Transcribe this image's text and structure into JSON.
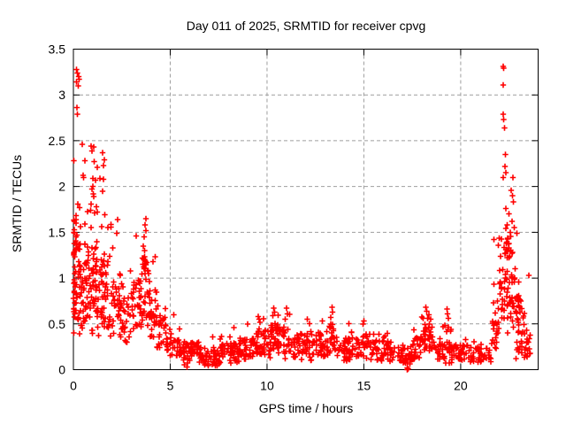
{
  "chart_data": {
    "type": "scatter",
    "title": "Day 011 of 2025, SRMTID for receiver cpvg",
    "xlabel": "GPS time / hours",
    "ylabel": "SRMTID / TECUs",
    "xlim": [
      0,
      24
    ],
    "ylim": [
      0,
      3.5
    ],
    "xticks": [
      0,
      5,
      10,
      15,
      20
    ],
    "xtick_labels": [
      "0",
      "5",
      "10",
      "15",
      "20"
    ],
    "yticks": [
      0,
      0.5,
      1,
      1.5,
      2,
      2.5,
      3,
      3.5
    ],
    "ytick_labels": [
      "0",
      "0.5",
      "1",
      "1.5",
      "2",
      "2.5",
      "3",
      "3.5"
    ],
    "grid": "dashed",
    "legend": "none",
    "series_name": "SRMTID",
    "marker": {
      "shape": "plus",
      "color": "#ff0000",
      "size": 7
    },
    "colors": {
      "grid": "#9e9e9e",
      "axis": "#000000",
      "background": "#ffffff"
    },
    "points": [
      [
        0.15,
        3.28
      ],
      [
        0.2,
        3.24
      ],
      [
        0.27,
        3.2
      ],
      [
        0.17,
        3.14
      ],
      [
        0.24,
        3.1
      ],
      [
        0.3,
        3.17
      ],
      [
        0.18,
        2.86
      ],
      [
        0.21,
        2.79
      ],
      [
        0.02,
        2.28
      ],
      [
        0.46,
        2.46
      ],
      [
        0.91,
        2.44
      ],
      [
        1.05,
        2.43
      ],
      [
        0.96,
        2.39
      ],
      [
        1.51,
        2.37
      ],
      [
        1.6,
        2.29
      ],
      [
        0.59,
        2.28
      ],
      [
        1.07,
        2.27
      ],
      [
        1.55,
        2.23
      ],
      [
        1.23,
        2.21
      ],
      [
        0.5,
        2.12
      ],
      [
        0.53,
        2.1
      ],
      [
        1.0,
        2.09
      ],
      [
        1.37,
        2.09
      ],
      [
        1.56,
        2.08
      ],
      [
        1.14,
        2.07
      ],
      [
        1.0,
        2.0
      ],
      [
        0.97,
        1.97
      ],
      [
        1.51,
        1.95
      ],
      [
        1.02,
        1.92
      ],
      [
        1.05,
        1.89
      ],
      [
        0.23,
        1.81
      ],
      [
        0.91,
        1.81
      ],
      [
        1.19,
        1.78
      ],
      [
        0.32,
        1.77
      ],
      [
        1.23,
        1.72
      ],
      [
        1.61,
        1.69
      ],
      [
        0.14,
        1.64
      ],
      [
        2.28,
        1.64
      ],
      [
        0.6,
        1.59
      ],
      [
        0.37,
        1.56
      ],
      [
        1.46,
        1.56
      ],
      [
        0.92,
        1.55
      ],
      [
        2.24,
        1.49
      ],
      [
        0.04,
        1.62
      ],
      [
        0.03,
        1.5
      ],
      [
        0.05,
        1.38
      ],
      [
        0.03,
        1.25
      ],
      [
        0.06,
        1.12
      ],
      [
        0.04,
        0.98
      ],
      [
        0.05,
        0.84
      ],
      [
        0.03,
        0.66
      ],
      [
        3.74,
        1.65
      ],
      [
        3.71,
        1.58
      ],
      [
        3.74,
        1.52
      ],
      [
        3.65,
        1.45
      ],
      [
        3.24,
        1.46
      ],
      [
        3.6,
        1.35
      ],
      [
        3.68,
        1.3
      ],
      [
        3.56,
        1.22
      ],
      [
        3.78,
        1.17
      ],
      [
        3.62,
        1.12
      ],
      [
        3.86,
        1.08
      ],
      [
        8.3,
        0.46
      ],
      [
        9.0,
        0.5
      ],
      [
        9.55,
        0.58
      ],
      [
        9.6,
        0.55
      ],
      [
        10.35,
        0.67
      ],
      [
        10.4,
        0.63
      ],
      [
        10.3,
        0.59
      ],
      [
        11.0,
        0.67
      ],
      [
        11.05,
        0.61
      ],
      [
        12.85,
        0.53
      ],
      [
        13.35,
        0.68
      ],
      [
        13.38,
        0.63
      ],
      [
        13.3,
        0.57
      ],
      [
        14.95,
        0.5
      ],
      [
        15.0,
        0.53
      ],
      [
        17.25,
        0.02
      ],
      [
        17.28,
        0.01
      ],
      [
        17.25,
        0.0
      ],
      [
        18.2,
        0.68
      ],
      [
        18.25,
        0.64
      ],
      [
        18.35,
        0.6
      ],
      [
        18.3,
        0.56
      ],
      [
        18.45,
        0.55
      ],
      [
        19.3,
        0.66
      ],
      [
        19.33,
        0.61
      ],
      [
        19.36,
        0.56
      ],
      [
        21.9,
        0.75
      ],
      [
        22.1,
        0.9
      ],
      [
        22.2,
        3.31
      ],
      [
        22.23,
        3.29
      ],
      [
        22.2,
        3.11
      ],
      [
        22.2,
        2.79
      ],
      [
        22.22,
        2.73
      ],
      [
        22.26,
        2.64
      ],
      [
        22.3,
        2.35
      ],
      [
        22.28,
        2.22
      ],
      [
        22.33,
        2.15
      ],
      [
        22.2,
        2.1
      ],
      [
        22.7,
        2.1
      ],
      [
        22.6,
        1.96
      ],
      [
        22.68,
        1.9
      ],
      [
        22.72,
        1.83
      ],
      [
        22.33,
        1.76
      ],
      [
        22.5,
        1.7
      ],
      [
        22.65,
        1.62
      ],
      [
        22.4,
        1.58
      ],
      [
        22.76,
        1.55
      ],
      [
        22.56,
        1.5
      ],
      [
        22.9,
        1.49
      ],
      [
        23.0,
        0.42
      ],
      [
        22.9,
        0.3
      ],
      [
        23.15,
        0.25
      ],
      [
        22.85,
        0.12
      ],
      [
        23.4,
        0.15
      ],
      [
        23.5,
        0.3
      ]
    ],
    "dense_bands": [
      [
        0.0,
        0.15,
        0.55,
        1.65,
        30
      ],
      [
        0.15,
        0.7,
        0.45,
        1.4,
        40
      ],
      [
        0.7,
        1.3,
        0.55,
        1.35,
        45
      ],
      [
        1.3,
        1.9,
        0.45,
        1.3,
        38
      ],
      [
        1.9,
        2.5,
        0.35,
        1.0,
        30
      ],
      [
        2.5,
        3.1,
        0.3,
        0.8,
        26
      ],
      [
        3.1,
        3.5,
        0.45,
        1.0,
        26
      ],
      [
        3.5,
        3.8,
        0.5,
        1.25,
        20
      ],
      [
        3.8,
        4.3,
        0.35,
        0.95,
        26
      ],
      [
        4.3,
        4.8,
        0.22,
        0.6,
        22
      ],
      [
        4.8,
        5.5,
        0.13,
        0.35,
        30
      ],
      [
        5.5,
        6.5,
        0.09,
        0.3,
        42
      ],
      [
        6.5,
        7.6,
        0.04,
        0.22,
        42
      ],
      [
        7.6,
        8.6,
        0.09,
        0.3,
        42
      ],
      [
        8.6,
        9.4,
        0.11,
        0.35,
        36
      ],
      [
        9.4,
        10.1,
        0.16,
        0.45,
        36
      ],
      [
        10.1,
        11.2,
        0.18,
        0.5,
        52
      ],
      [
        11.2,
        12.3,
        0.13,
        0.4,
        46
      ],
      [
        12.3,
        13.2,
        0.14,
        0.42,
        40
      ],
      [
        13.2,
        13.6,
        0.18,
        0.5,
        18
      ],
      [
        13.6,
        14.6,
        0.11,
        0.35,
        40
      ],
      [
        14.6,
        15.3,
        0.14,
        0.4,
        30
      ],
      [
        15.3,
        16.3,
        0.1,
        0.32,
        38
      ],
      [
        16.3,
        17.5,
        0.07,
        0.25,
        40
      ],
      [
        17.5,
        18.0,
        0.1,
        0.35,
        20
      ],
      [
        18.0,
        18.7,
        0.18,
        0.5,
        32
      ],
      [
        18.7,
        19.2,
        0.1,
        0.3,
        18
      ],
      [
        19.2,
        19.5,
        0.18,
        0.5,
        12
      ],
      [
        19.5,
        20.5,
        0.09,
        0.28,
        36
      ],
      [
        20.5,
        21.6,
        0.08,
        0.25,
        36
      ],
      [
        21.6,
        22.0,
        0.18,
        0.55,
        18
      ],
      [
        22.0,
        22.5,
        0.55,
        1.45,
        42
      ],
      [
        22.5,
        22.9,
        0.45,
        1.3,
        30
      ],
      [
        22.9,
        23.3,
        0.18,
        0.8,
        26
      ],
      [
        23.3,
        23.6,
        0.1,
        0.45,
        15
      ],
      [
        0.0,
        0.3,
        0.3,
        1.75,
        10
      ],
      [
        0.3,
        1.3,
        0.32,
        1.8,
        24
      ],
      [
        1.3,
        2.2,
        0.28,
        1.6,
        14
      ],
      [
        2.2,
        3.1,
        0.2,
        1.1,
        10
      ],
      [
        3.1,
        4.3,
        0.3,
        1.25,
        16
      ],
      [
        4.3,
        5.5,
        0.12,
        0.7,
        10
      ],
      [
        5.5,
        7.6,
        0.03,
        0.38,
        16
      ],
      [
        7.6,
        9.4,
        0.07,
        0.47,
        16
      ],
      [
        9.4,
        11.2,
        0.12,
        0.62,
        20
      ],
      [
        11.2,
        13.2,
        0.09,
        0.55,
        16
      ],
      [
        13.2,
        14.6,
        0.08,
        0.55,
        10
      ],
      [
        14.6,
        16.3,
        0.08,
        0.48,
        12
      ],
      [
        16.3,
        17.5,
        0.05,
        0.32,
        8
      ],
      [
        17.5,
        19.2,
        0.08,
        0.6,
        12
      ],
      [
        19.2,
        21.6,
        0.06,
        0.36,
        14
      ],
      [
        21.6,
        22.9,
        0.3,
        1.65,
        18
      ],
      [
        22.9,
        23.6,
        0.1,
        1.1,
        10
      ]
    ]
  }
}
